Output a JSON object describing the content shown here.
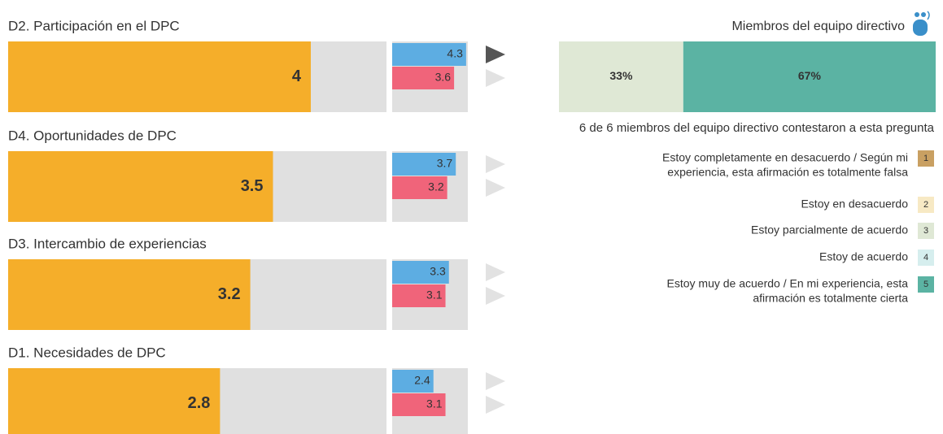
{
  "chart_data": [
    {
      "type": "bar",
      "title": "D2. Participación en el DPC",
      "values": [
        4
      ],
      "color": "#f5ae2a",
      "xlim": [
        0,
        5
      ],
      "comparison": {
        "xlim": [
          0,
          4.4
        ],
        "series": [
          {
            "color": "#5dade2",
            "values": [
              4.3
            ]
          },
          {
            "color": "#f0647a",
            "values": [
              3.6
            ]
          }
        ]
      },
      "selected": true
    },
    {
      "type": "bar",
      "title": "D4. Oportunidades de DPC",
      "values": [
        3.5
      ],
      "color": "#f5ae2a",
      "xlim": [
        0,
        5
      ],
      "comparison": {
        "xlim": [
          0,
          4.4
        ],
        "series": [
          {
            "color": "#5dade2",
            "values": [
              3.7
            ]
          },
          {
            "color": "#f0647a",
            "values": [
              3.2
            ]
          }
        ]
      },
      "selected": false
    },
    {
      "type": "bar",
      "title": "D3. Intercambio de experiencias",
      "values": [
        3.2
      ],
      "color": "#f5ae2a",
      "xlim": [
        0,
        5
      ],
      "comparison": {
        "xlim": [
          0,
          4.4
        ],
        "series": [
          {
            "color": "#5dade2",
            "values": [
              3.3
            ]
          },
          {
            "color": "#f0647a",
            "values": [
              3.1
            ]
          }
        ]
      },
      "selected": false
    },
    {
      "type": "bar",
      "title": "D1. Necesidades de DPC",
      "values": [
        2.8
      ],
      "color": "#f5ae2a",
      "xlim": [
        0,
        5
      ],
      "comparison": {
        "xlim": [
          0,
          4.4
        ],
        "series": [
          {
            "color": "#5dade2",
            "values": [
              2.4
            ]
          },
          {
            "color": "#f0647a",
            "values": [
              3.1
            ]
          }
        ]
      },
      "selected": false
    },
    {
      "type": "stacked-bar",
      "title": "Miembros del equipo directivo",
      "note": "6 de 6 miembros del equipo directivo contestaron a esta pregunta",
      "xlim": [
        0,
        100
      ],
      "segments": [
        {
          "key": 3,
          "value": 33,
          "value_label": "33%"
        },
        {
          "key": 5,
          "value": 67,
          "value_label": "67%"
        }
      ],
      "legend": [
        {
          "key": 1,
          "label": [
            "Estoy completamente en desacuerdo / Según mi",
            "experiencia, esta afirmación es totalmente falsa"
          ],
          "color": "#c9a062"
        },
        {
          "key": 2,
          "label": [
            "Estoy en desacuerdo"
          ],
          "color": "#f7e9c4"
        },
        {
          "key": 3,
          "label": [
            "Estoy parcialmente de acuerdo"
          ],
          "color": "#dfe8d5"
        },
        {
          "key": 4,
          "label": [
            "Estoy de acuerdo"
          ],
          "color": "#d6eeee"
        },
        {
          "key": 5,
          "label": [
            "Estoy muy de acuerdo / En mi experiencia, esta",
            "afirmación es totalmente cierta"
          ],
          "color": "#5bb3a3"
        }
      ]
    }
  ]
}
